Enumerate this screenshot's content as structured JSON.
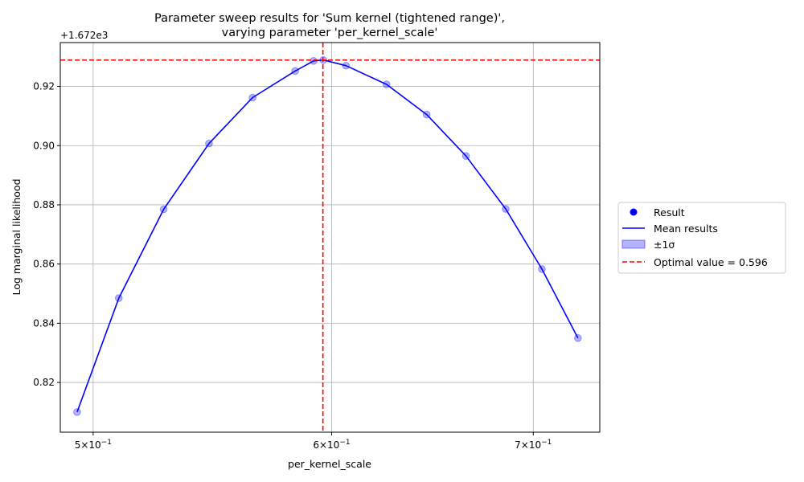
{
  "chart_data": {
    "type": "line",
    "title_lines": [
      "Parameter sweep results for 'Sum kernel (tightened range)',",
      "varying parameter 'per_kernel_scale'"
    ],
    "xlabel": "per_kernel_scale",
    "ylabel": "Log marginal likelihood",
    "x_scale": "log",
    "xlim": [
      0.4876,
      0.7365
    ],
    "ylim": [
      0.8032,
      0.9348
    ],
    "y_offset_label": "+1.672e3",
    "x_ticks": [
      {
        "value": 0.5,
        "base": "5×10",
        "exp": "−1"
      },
      {
        "value": 0.6,
        "base": "6×10",
        "exp": "−1"
      },
      {
        "value": 0.7,
        "base": "7×10",
        "exp": "−1"
      }
    ],
    "y_ticks": [
      {
        "value": 0.82,
        "label": "0.82"
      },
      {
        "value": 0.84,
        "label": "0.84"
      },
      {
        "value": 0.86,
        "label": "0.86"
      },
      {
        "value": 0.88,
        "label": "0.88"
      },
      {
        "value": 0.9,
        "label": "0.90"
      },
      {
        "value": 0.92,
        "label": "0.92"
      }
    ],
    "grid": true,
    "series": [
      {
        "name": "Result",
        "type": "scatter",
        "x": [
          0.4939,
          0.5099,
          0.5277,
          0.5463,
          0.5648,
          0.5835,
          0.5918,
          0.5962,
          0.6066,
          0.6257,
          0.6452,
          0.6649,
          0.6854,
          0.7046,
          0.7243
        ],
        "y": [
          0.81,
          0.8485,
          0.8785,
          0.9007,
          0.9162,
          0.9252,
          0.9286,
          0.9289,
          0.927,
          0.9207,
          0.9105,
          0.8965,
          0.8786,
          0.8583,
          0.835
        ],
        "color": "#0000ff"
      },
      {
        "name": "Mean results",
        "type": "line",
        "x": [
          0.4939,
          0.5099,
          0.5277,
          0.5463,
          0.5648,
          0.5835,
          0.5918,
          0.5962,
          0.6066,
          0.6257,
          0.6452,
          0.6649,
          0.6854,
          0.7046,
          0.7243
        ],
        "y": [
          0.81,
          0.8485,
          0.8785,
          0.9007,
          0.9162,
          0.9252,
          0.9286,
          0.9289,
          0.927,
          0.9207,
          0.9105,
          0.8965,
          0.8786,
          0.8583,
          0.835
        ],
        "color": "#0000ff"
      },
      {
        "name": "±1σ",
        "type": "band",
        "color": "#0000ff"
      },
      {
        "name": "Optimal value = 0.596",
        "type": "vline",
        "x": 0.596,
        "hline_y": 0.9289,
        "color": "#ff0000"
      }
    ],
    "legend_position": "right (outside)"
  }
}
